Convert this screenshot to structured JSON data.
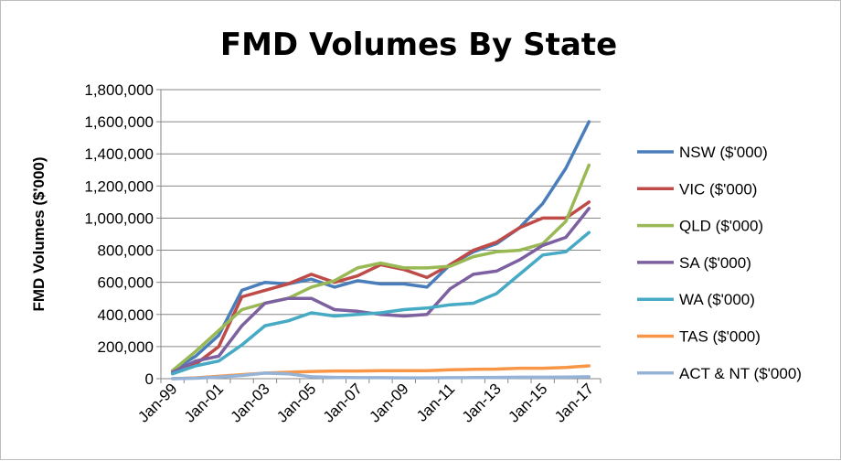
{
  "chart_data": {
    "type": "line",
    "title": "FMD Volumes By State",
    "xlabel": "",
    "ylabel": "FMD Volumes ($'000)",
    "ylim": [
      0,
      1800000
    ],
    "y_ticks": [
      "0",
      "200,000",
      "400,000",
      "600,000",
      "800,000",
      "1,000,000",
      "1,200,000",
      "1,400,000",
      "1,600,000",
      "1,800,000"
    ],
    "x_tick_labels": [
      "Jan-99",
      "Jan-01",
      "Jan-03",
      "Jan-05",
      "Jan-07",
      "Jan-09",
      "Jan-11",
      "Jan-13",
      "Jan-15",
      "Jan-17"
    ],
    "x": [
      "Jan-99",
      "Jan-00",
      "Jan-01",
      "Jan-02",
      "Jan-03",
      "Jan-04",
      "Jan-05",
      "Jan-06",
      "Jan-07",
      "Jan-08",
      "Jan-09",
      "Jan-10",
      "Jan-11",
      "Jan-12",
      "Jan-13",
      "Jan-14",
      "Jan-15",
      "Jan-16",
      "Jan-17"
    ],
    "grid": "horizontal",
    "legend": "right",
    "series": [
      {
        "name": "NSW ($'000)",
        "color": "#4a7ebb",
        "values": [
          50000,
          140000,
          270000,
          550000,
          600000,
          590000,
          620000,
          570000,
          610000,
          590000,
          590000,
          570000,
          710000,
          790000,
          840000,
          940000,
          1090000,
          1310000,
          1600000
        ]
      },
      {
        "name": "VIC ($'000)",
        "color": "#be4b48",
        "values": [
          45000,
          90000,
          200000,
          510000,
          550000,
          590000,
          650000,
          600000,
          640000,
          710000,
          680000,
          630000,
          710000,
          800000,
          850000,
          940000,
          1000000,
          1000000,
          1100000
        ]
      },
      {
        "name": "QLD ($'000)",
        "color": "#98b954",
        "values": [
          50000,
          170000,
          300000,
          430000,
          470000,
          500000,
          570000,
          610000,
          690000,
          720000,
          690000,
          690000,
          700000,
          760000,
          790000,
          800000,
          840000,
          980000,
          1330000
        ]
      },
      {
        "name": "SA ($'000)",
        "color": "#7d60a0",
        "values": [
          40000,
          110000,
          140000,
          330000,
          470000,
          500000,
          500000,
          430000,
          420000,
          400000,
          390000,
          400000,
          560000,
          650000,
          670000,
          740000,
          830000,
          880000,
          1060000
        ]
      },
      {
        "name": "WA ($'000)",
        "color": "#46aac5",
        "values": [
          30000,
          80000,
          110000,
          210000,
          330000,
          360000,
          410000,
          390000,
          400000,
          410000,
          430000,
          440000,
          460000,
          470000,
          530000,
          650000,
          770000,
          790000,
          910000
        ]
      },
      {
        "name": "TAS ($'000)",
        "color": "#f79646",
        "values": [
          0,
          5000,
          15000,
          25000,
          35000,
          40000,
          45000,
          48000,
          48000,
          50000,
          50000,
          50000,
          55000,
          58000,
          60000,
          65000,
          65000,
          70000,
          80000
        ]
      },
      {
        "name": "ACT & NT ($'000)",
        "color": "#95b3d7",
        "values": [
          0,
          3000,
          10000,
          20000,
          35000,
          30000,
          12000,
          8000,
          6000,
          6000,
          5000,
          5000,
          6000,
          7000,
          8000,
          9000,
          9000,
          10000,
          12000
        ]
      }
    ]
  }
}
